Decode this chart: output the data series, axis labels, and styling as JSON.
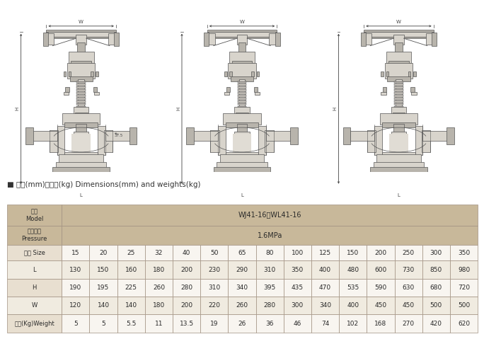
{
  "title_section": "■ 尺寸(mm)和重量(kg) Dimensions(mm) and weights(kg)",
  "model_value": "WJ41-16、WL41-16",
  "pressure_value": "1.6MPa",
  "sizes": [
    "15",
    "20",
    "25",
    "32",
    "40",
    "50",
    "65",
    "80",
    "100",
    "125",
    "150",
    "200",
    "250",
    "300",
    "350"
  ],
  "L": [
    130,
    150,
    160,
    180,
    200,
    230,
    290,
    310,
    350,
    400,
    480,
    600,
    730,
    850,
    980
  ],
  "H": [
    190,
    195,
    225,
    260,
    280,
    310,
    340,
    395,
    435,
    470,
    535,
    590,
    630,
    680,
    720
  ],
  "W": [
    120,
    140,
    140,
    180,
    200,
    220,
    260,
    280,
    300,
    340,
    400,
    450,
    450,
    500,
    500
  ],
  "Weight": [
    5,
    5,
    5.5,
    11,
    13.5,
    19,
    26,
    36,
    46,
    74,
    102,
    168,
    270,
    420,
    620
  ],
  "bg_color_header": "#c8b89a",
  "bg_color_data_odd": "#e8dfd0",
  "bg_color_data_even": "#f0ebe0",
  "bg_color_white": "#f8f5f0",
  "border_color": "#a09080",
  "text_color": "#333333",
  "figure_bg": "#ffffff",
  "drawing_bg": "#f2f2f2",
  "valve_fill": "#d8d4cc",
  "valve_dark": "#b8b4ac",
  "valve_edge": "#555555",
  "dim_color": "#444444"
}
